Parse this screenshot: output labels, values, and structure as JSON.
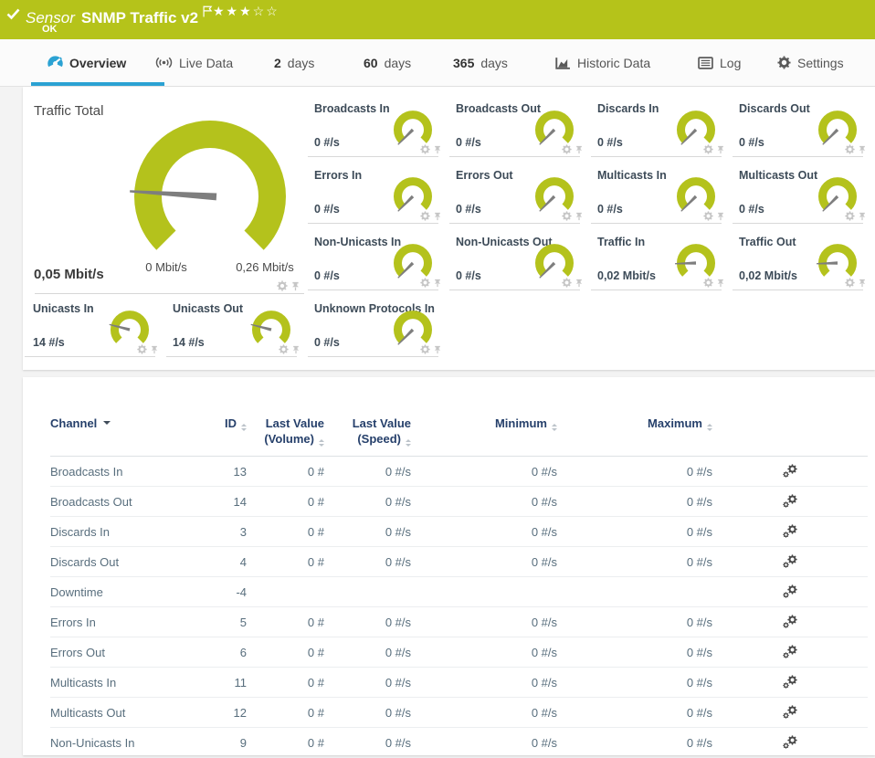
{
  "header": {
    "sensor_label": "Sensor",
    "title": "SNMP Traffic v2",
    "status": "OK",
    "stars": "★★★☆☆",
    "rating_filled": 3,
    "rating_total": 5
  },
  "tabs": {
    "overview": {
      "label": "Overview"
    },
    "live": {
      "label": "Live Data"
    },
    "d2": {
      "prefix": "2",
      "label": "days"
    },
    "d60": {
      "prefix": "60",
      "label": "days"
    },
    "d365": {
      "prefix": "365",
      "label": "days"
    },
    "historic": {
      "label": "Historic Data"
    },
    "log": {
      "label": "Log"
    },
    "settings": {
      "label": "Settings"
    }
  },
  "gauges": {
    "main": {
      "label": "Traffic Total",
      "value": "0,05 Mbit/s",
      "min_label": "0 Mbit/s",
      "max_label": "0,26 Mbit/s",
      "fraction": 0.18
    },
    "small": [
      {
        "label": "Broadcasts In",
        "value": "0 #/s",
        "fraction": 0
      },
      {
        "label": "Broadcasts Out",
        "value": "0 #/s",
        "fraction": 0
      },
      {
        "label": "Discards In",
        "value": "0 #/s",
        "fraction": 0
      },
      {
        "label": "Discards Out",
        "value": "0 #/s",
        "fraction": 0
      },
      {
        "label": "Errors In",
        "value": "0 #/s",
        "fraction": 0
      },
      {
        "label": "Errors Out",
        "value": "0 #/s",
        "fraction": 0
      },
      {
        "label": "Multicasts In",
        "value": "0 #/s",
        "fraction": 0
      },
      {
        "label": "Multicasts Out",
        "value": "0 #/s",
        "fraction": 0
      },
      {
        "label": "Non-Unicasts In",
        "value": "0 #/s",
        "fraction": 0
      },
      {
        "label": "Non-Unicasts Out",
        "value": "0 #/s",
        "fraction": 0
      },
      {
        "label": "Traffic In",
        "value": "0,02 Mbit/s",
        "fraction": 0.16
      },
      {
        "label": "Traffic Out",
        "value": "0,02 Mbit/s",
        "fraction": 0.16
      },
      {
        "label": "Unicasts In",
        "value": "14 #/s",
        "fraction": 0.22
      },
      {
        "label": "Unicasts Out",
        "value": "14 #/s",
        "fraction": 0.22
      },
      {
        "label": "Unknown Protocols In",
        "value": "0 #/s",
        "fraction": 0
      }
    ]
  },
  "table": {
    "columns": {
      "channel": "Channel",
      "id": "ID",
      "last_volume_1": "Last Value",
      "last_volume_2": "(Volume)",
      "last_speed_1": "Last Value",
      "last_speed_2": "(Speed)",
      "minimum": "Minimum",
      "maximum": "Maximum"
    },
    "rows": [
      {
        "name": "Broadcasts In",
        "id": "13",
        "volume": "0 #",
        "speed": "0 #/s",
        "min": "0 #/s",
        "max": "0 #/s"
      },
      {
        "name": "Broadcasts Out",
        "id": "14",
        "volume": "0 #",
        "speed": "0 #/s",
        "min": "0 #/s",
        "max": "0 #/s"
      },
      {
        "name": "Discards In",
        "id": "3",
        "volume": "0 #",
        "speed": "0 #/s",
        "min": "0 #/s",
        "max": "0 #/s"
      },
      {
        "name": "Discards Out",
        "id": "4",
        "volume": "0 #",
        "speed": "0 #/s",
        "min": "0 #/s",
        "max": "0 #/s"
      },
      {
        "name": "Downtime",
        "id": "-4",
        "volume": "",
        "speed": "",
        "min": "",
        "max": ""
      },
      {
        "name": "Errors In",
        "id": "5",
        "volume": "0 #",
        "speed": "0 #/s",
        "min": "0 #/s",
        "max": "0 #/s"
      },
      {
        "name": "Errors Out",
        "id": "6",
        "volume": "0 #",
        "speed": "0 #/s",
        "min": "0 #/s",
        "max": "0 #/s"
      },
      {
        "name": "Multicasts In",
        "id": "11",
        "volume": "0 #",
        "speed": "0 #/s",
        "min": "0 #/s",
        "max": "0 #/s"
      },
      {
        "name": "Multicasts Out",
        "id": "12",
        "volume": "0 #",
        "speed": "0 #/s",
        "min": "0 #/s",
        "max": "0 #/s"
      },
      {
        "name": "Non-Unicasts In",
        "id": "9",
        "volume": "0 #",
        "speed": "0 #/s",
        "min": "0 #/s",
        "max": "0 #/s"
      }
    ]
  },
  "colors": {
    "status_green": "#b5c31a",
    "gauge_green": "#b4c21c",
    "active_tab_blue": "#2ba2d3",
    "needle_gray": "#7e7e7e",
    "table_header_blue": "#26406b"
  }
}
